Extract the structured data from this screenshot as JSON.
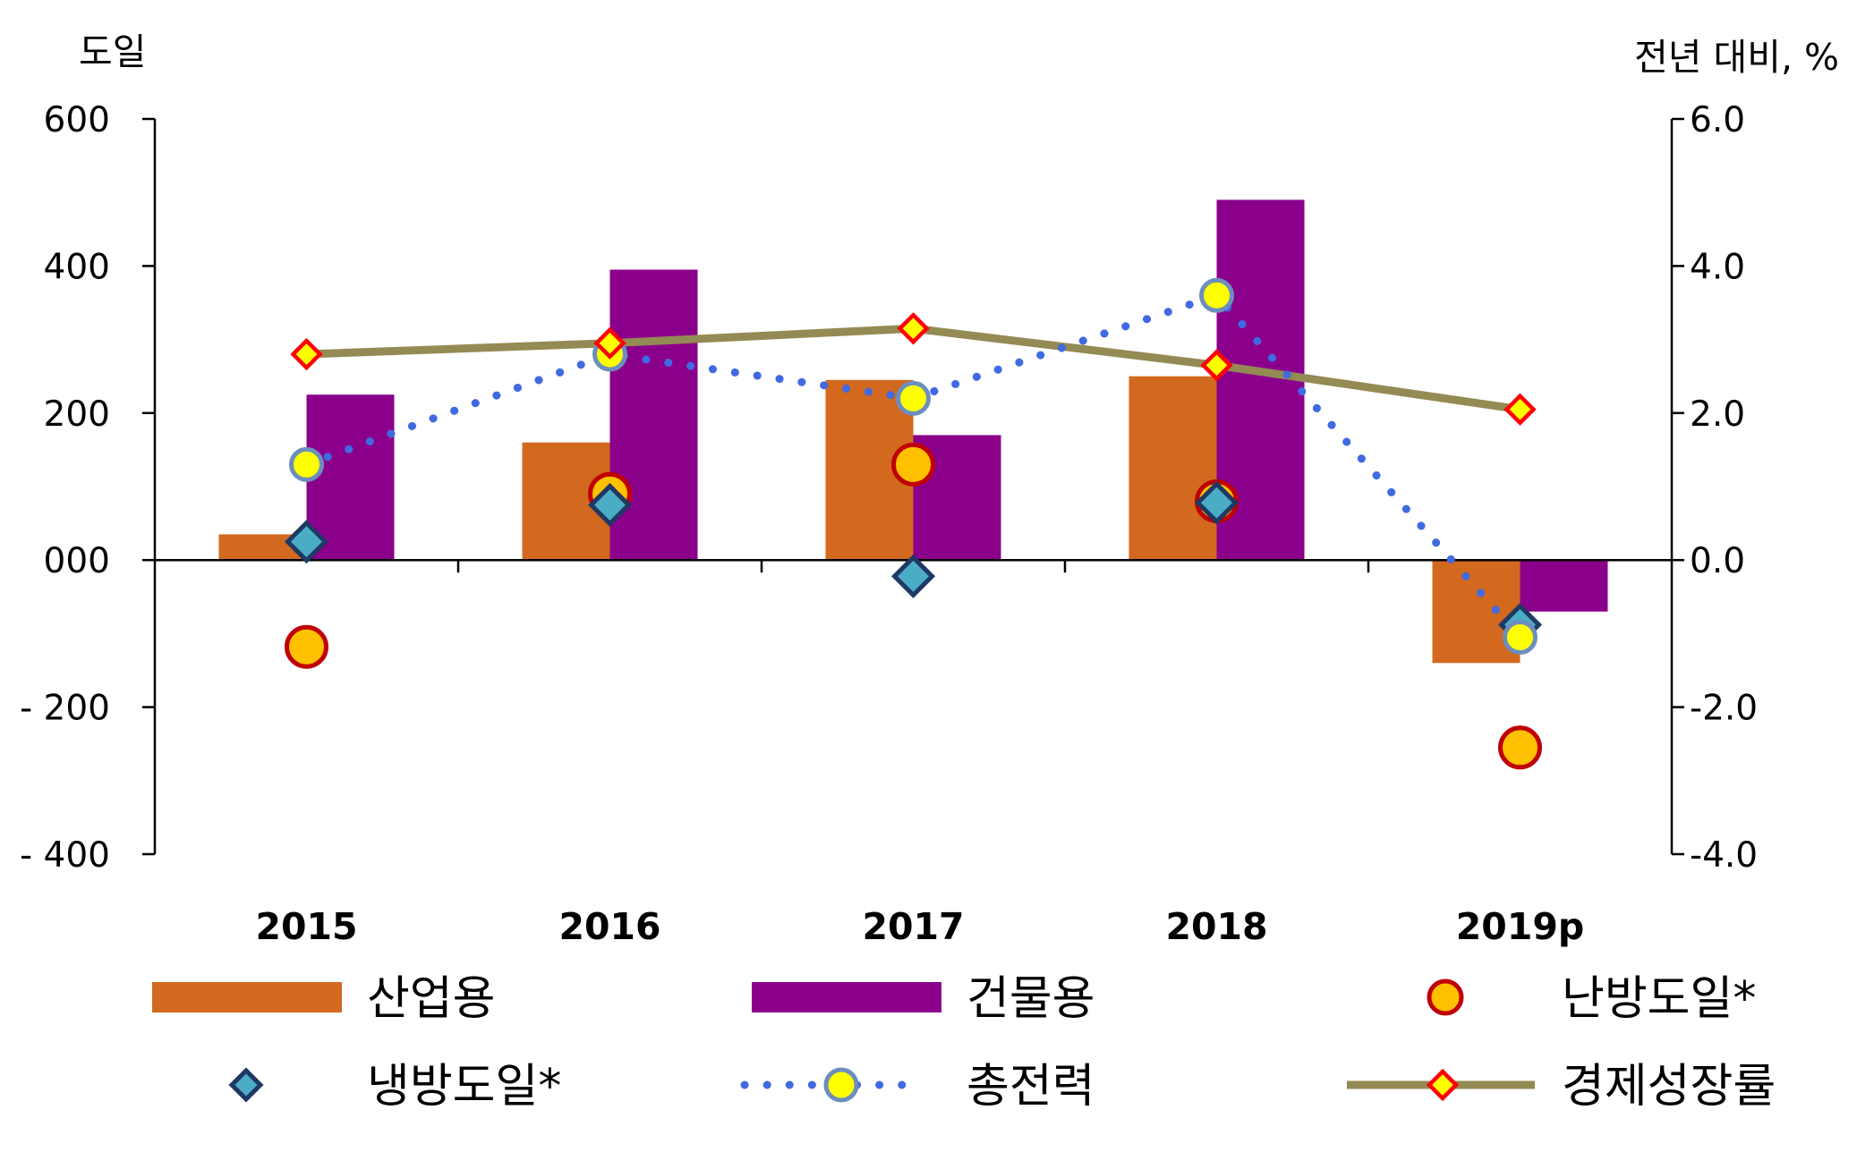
{
  "chart_data": {
    "type": "bar",
    "left_axis_label": "도일",
    "right_axis_label": "전년 대비, %",
    "categories": [
      "2015",
      "2016",
      "2017",
      "2018",
      "2019p"
    ],
    "left_ticks": [
      "600",
      "400",
      "200",
      "000",
      "- 200",
      "- 400"
    ],
    "right_ticks": [
      "6.0",
      "4.0",
      "2.0",
      "0.0",
      "-2.0",
      "-4.0"
    ],
    "ylim_left": [
      -400,
      600
    ],
    "ylim_right": [
      -4.0,
      6.0
    ],
    "series": [
      {
        "name": "산업용",
        "kind": "bar",
        "axis": "right",
        "color": "#D2691E",
        "values": [
          0.35,
          1.6,
          2.45,
          2.5,
          -1.4
        ]
      },
      {
        "name": "건물용",
        "kind": "bar",
        "axis": "right",
        "color": "#8B008B",
        "values": [
          2.25,
          3.95,
          1.7,
          4.9,
          -0.7
        ]
      },
      {
        "name": "난방도일*",
        "kind": "circle-marker",
        "axis": "left",
        "color": "#FFC000",
        "edge": "#C00000",
        "values": [
          -118,
          90,
          130,
          80,
          -255
        ]
      },
      {
        "name": "냉방도일*",
        "kind": "diamond-marker",
        "axis": "left",
        "color": "#4BACC6",
        "edge": "#1F3864",
        "values": [
          25,
          75,
          -22,
          78,
          -88
        ]
      },
      {
        "name": "총전력",
        "kind": "dotted-line",
        "axis": "right",
        "color": "#4169E1",
        "marker": "#FFFF00",
        "values": [
          1.3,
          2.8,
          2.2,
          3.6,
          -1.05
        ]
      },
      {
        "name": "경제성장률",
        "kind": "solid-line",
        "axis": "right",
        "color": "#948A54",
        "marker": "#FFFF00",
        "values": [
          2.8,
          2.95,
          3.15,
          2.65,
          2.05
        ]
      }
    ]
  }
}
